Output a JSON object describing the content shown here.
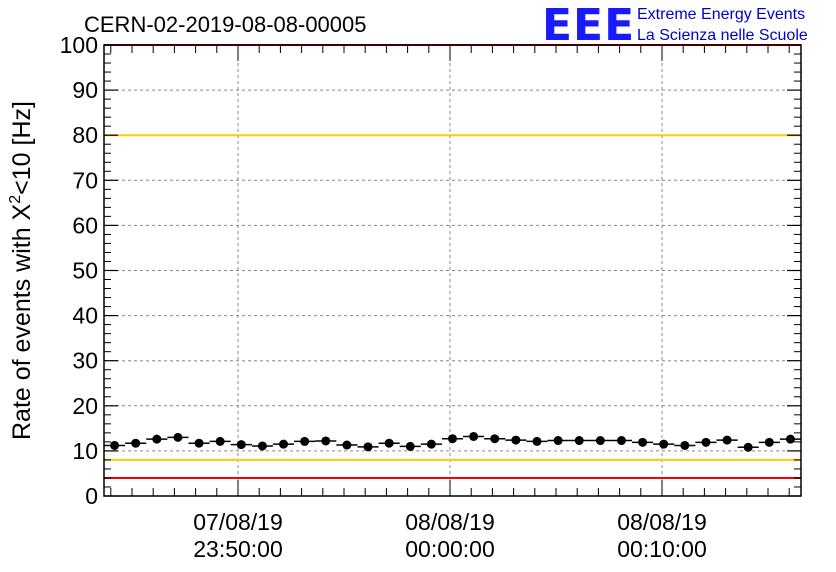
{
  "chart_data": {
    "type": "scatter",
    "title": "CERN-02-2019-08-08-00005",
    "ylabel_main": "Rate of events with X",
    "ylabel_sup": "2",
    "ylabel_tail": "<10 [Hz]",
    "xlabel": "",
    "ylim": [
      0,
      100
    ],
    "yticks": [
      "0",
      "10",
      "20",
      "30",
      "40",
      "50",
      "60",
      "70",
      "80",
      "90",
      "100"
    ],
    "xtick_labels": [
      {
        "date": "07/08/19",
        "time": "23:50:00"
      },
      {
        "date": "08/08/19",
        "time": "00:00:00"
      },
      {
        "date": "08/08/19",
        "time": "00:10:00"
      }
    ],
    "grid": true,
    "series": [
      {
        "values": [
          11.2,
          11.7,
          12.6,
          13.0,
          11.7,
          12.1,
          11.4,
          11.1,
          11.5,
          12.1,
          12.2,
          11.3,
          10.9,
          11.7,
          11.0,
          11.5,
          12.7,
          13.2,
          12.7,
          12.4,
          12.1,
          12.3,
          12.3,
          12.3,
          12.3,
          11.9,
          11.5,
          11.2,
          11.9,
          12.4,
          10.8,
          11.9,
          12.6
        ],
        "errors": 0.4
      }
    ],
    "reference_lines": [
      {
        "value": 100,
        "color": "#ff0000"
      },
      {
        "value": 80,
        "color": "#ffcc00"
      },
      {
        "value": 8,
        "color": "#ffcc00"
      },
      {
        "value": 4,
        "color": "#ff0000"
      }
    ],
    "colors": {
      "marker": "#000000",
      "grid": "#888888",
      "frame": "#000000"
    }
  },
  "logo": {
    "mark": "EEE",
    "line1": "Extreme Energy Events",
    "line2": "La Scienza nelle Scuole"
  }
}
